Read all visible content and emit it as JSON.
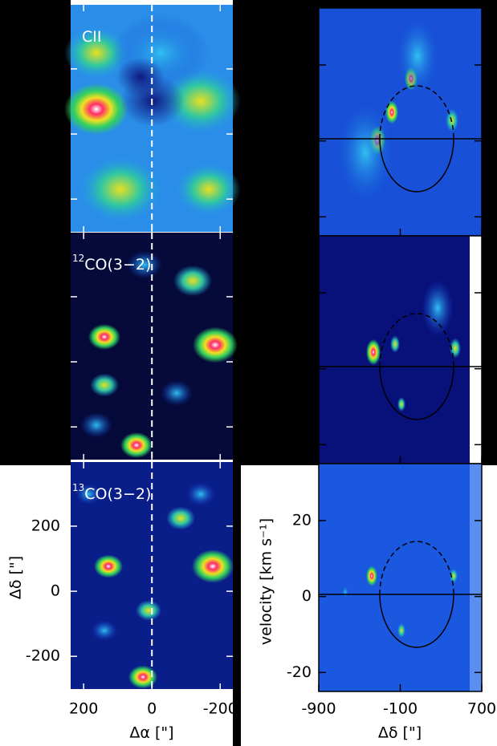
{
  "chart_data": [
    {
      "type": "map",
      "panels": [
        {
          "label": "CII"
        },
        {
          "sup": "12",
          "label": "CO(3−2)"
        },
        {
          "sup": "13",
          "label": "CO(3−2)"
        }
      ],
      "x_label": "Δα [\"]",
      "y_label": "Δδ [\"]",
      "xlim": [
        238,
        -237
      ],
      "xticks": [
        200,
        0,
        -200
      ],
      "ylim": [
        -303,
        397
      ],
      "yticks": [
        200,
        0,
        -200
      ]
    },
    {
      "type": "pv",
      "x_label": "Δδ [\"]",
      "y_label": "velocity [km s⁻¹]",
      "xlim": [
        -900,
        700
      ],
      "xticks": [
        -900,
        -100,
        700
      ],
      "ylim": [
        -25,
        35
      ],
      "yticks": [
        20,
        0,
        -20
      ]
    }
  ]
}
